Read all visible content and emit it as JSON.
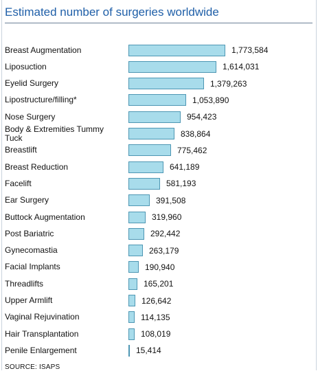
{
  "chart_data": {
    "type": "bar",
    "orientation": "horizontal",
    "title": "Estimated number of surgeries worldwide",
    "source": "SOURCE: ISAPS",
    "bar_color": "#a8dceb",
    "bar_border_color": "#4d96b3",
    "title_color": "#1f5fa8",
    "grid": false,
    "categories": [
      "Breast Augmentation",
      "Liposuction",
      "Eyelid Surgery",
      "Lipostructure/filling*",
      "Nose Surgery",
      "Body & Extremities Tummy Tuck",
      "Breastlift",
      "Breast Reduction",
      "Facelift",
      "Ear Surgery",
      "Buttock Augmentation",
      "Post Bariatric",
      "Gynecomastia",
      "Facial Implants",
      "Threadlifts",
      "Upper Armlift",
      "Vaginal Rejuvination",
      "Hair Transplantation",
      "Penile Enlargement"
    ],
    "values": [
      1773584,
      1614031,
      1379263,
      1053890,
      954423,
      838864,
      775462,
      641189,
      581193,
      391508,
      319960,
      292442,
      263179,
      190940,
      165201,
      126642,
      114135,
      108019,
      15414
    ],
    "value_labels": [
      "1,773,584",
      "1,614,031",
      "1,379,263",
      "1,053,890",
      "954,423",
      "838,864",
      "775,462",
      "641,189",
      "581,193",
      "391,508",
      "319,960",
      "292,442",
      "263,179",
      "190,940",
      "165,201",
      "126,642",
      "114,135",
      "108,019",
      "15,414"
    ]
  }
}
